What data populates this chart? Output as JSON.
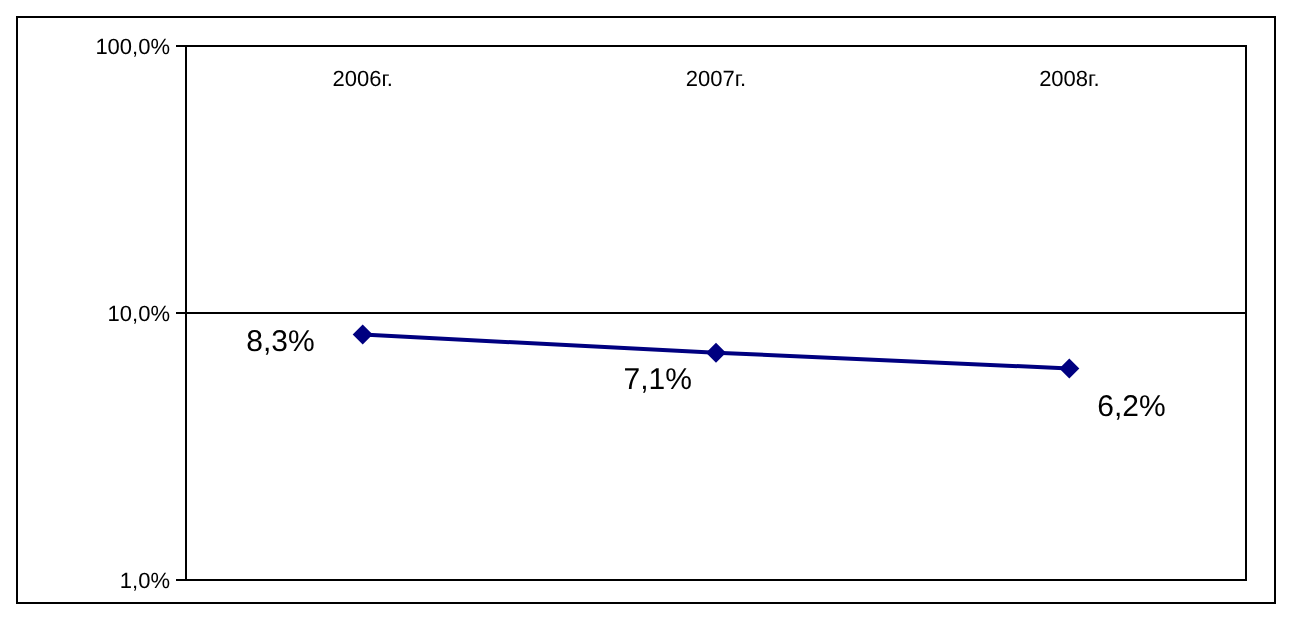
{
  "chart_data": {
    "type": "line",
    "categories": [
      "2006г.",
      "2007г.",
      "2008г."
    ],
    "series": [
      {
        "color": "#000080",
        "values": [
          8.3,
          7.1,
          6.2
        ],
        "value_labels": [
          "8,3%",
          "7,1%",
          "6,2%"
        ]
      }
    ],
    "log": "y",
    "ylim": [
      1,
      100
    ],
    "yticks": [
      {
        "value": 1,
        "label": "1,0%"
      },
      {
        "value": 10,
        "label": "10,0%"
      },
      {
        "value": 100,
        "label": "100,0%"
      }
    ],
    "grid": "y",
    "marker": "diamond"
  }
}
